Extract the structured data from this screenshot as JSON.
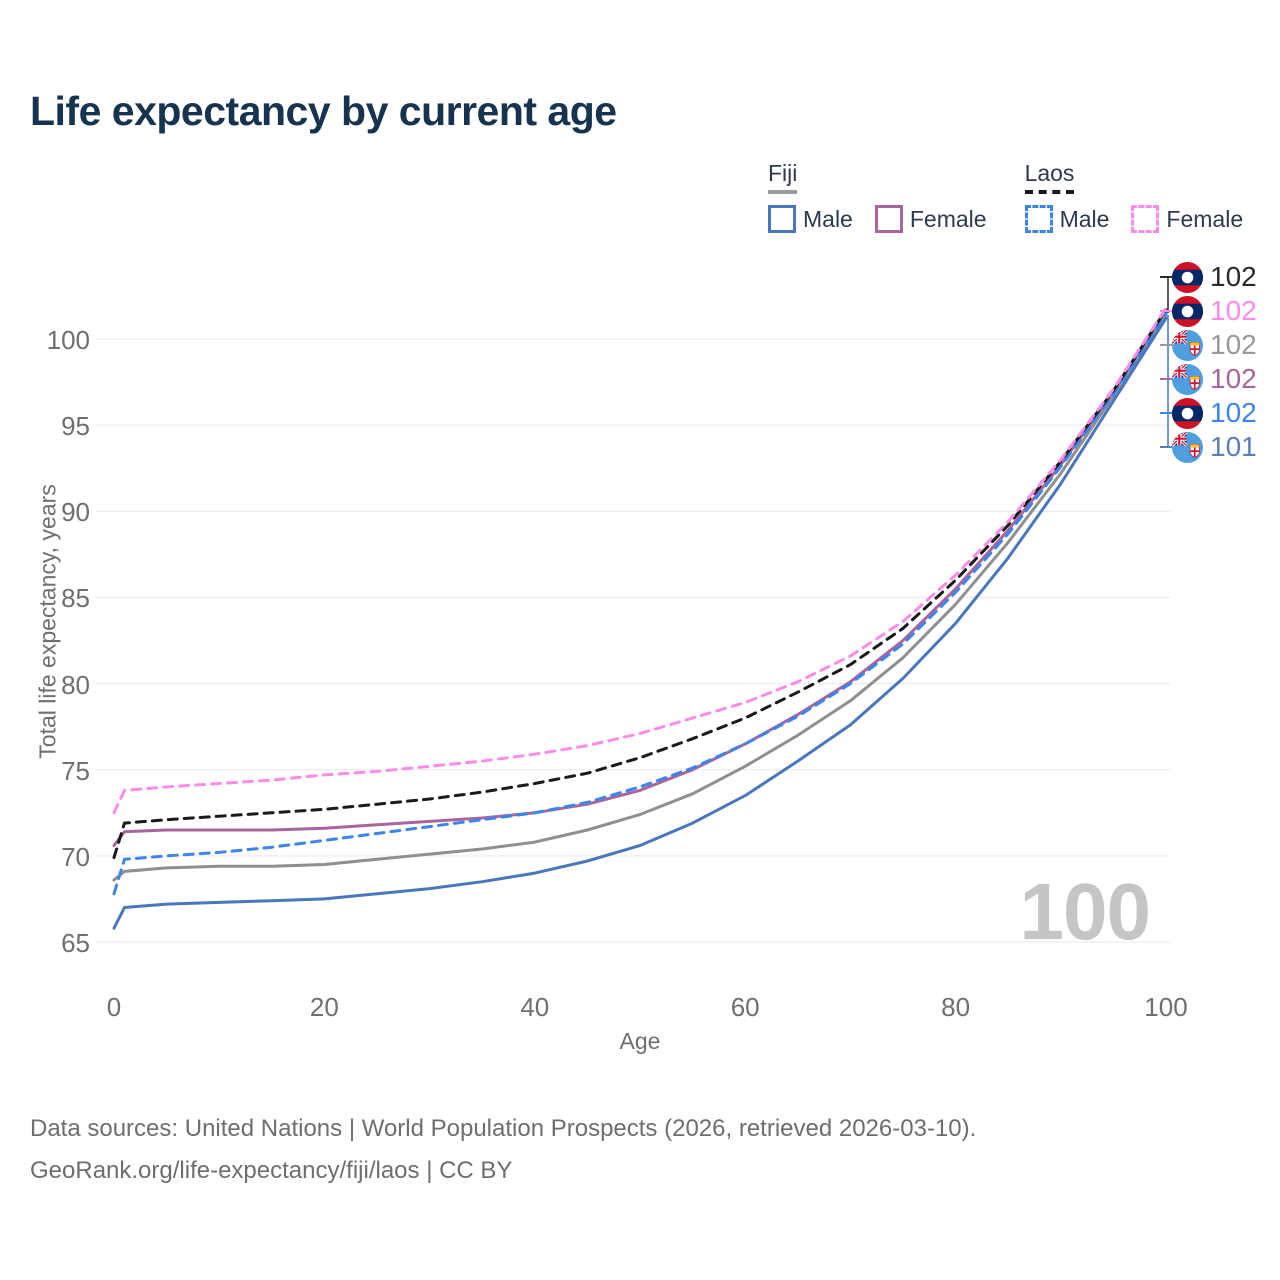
{
  "title": "Life expectancy by current age",
  "legend": {
    "groups": [
      {
        "label": "Fiji",
        "line_style": "solid",
        "underline_color": "#9a9a9a",
        "items": [
          {
            "label": "Male",
            "color": "#4a77bb"
          },
          {
            "label": "Female",
            "color": "#a9659d"
          }
        ]
      },
      {
        "label": "Laos",
        "line_style": "dashed",
        "underline_color": "#1a1a1a",
        "items": [
          {
            "label": "Male",
            "color": "#3d85ea"
          },
          {
            "label": "Female",
            "color": "#fb8ce8"
          }
        ]
      }
    ]
  },
  "chart": {
    "y_axis_label": "Total life expectancy, years",
    "x_axis_label": "Age",
    "watermark": "100",
    "y_ticks": [
      65,
      70,
      75,
      80,
      85,
      90,
      95,
      100
    ],
    "x_ticks": [
      0,
      20,
      40,
      60,
      80,
      100
    ]
  },
  "chart_data": {
    "type": "line",
    "title": "Life expectancy by current age",
    "xlabel": "Age",
    "ylabel": "Total life expectancy, years",
    "xlim": [
      0,
      100
    ],
    "ylim": [
      63,
      103
    ],
    "grid": "horizontal",
    "legend_position": "top-right",
    "x": [
      0,
      1,
      5,
      10,
      15,
      20,
      25,
      30,
      35,
      40,
      45,
      50,
      55,
      60,
      65,
      70,
      75,
      80,
      85,
      90,
      95,
      100
    ],
    "series": [
      {
        "name": "Fiji Female",
        "country": "Fiji",
        "sex": "female",
        "color": "#a9659d",
        "dash": "solid",
        "values": [
          70.6,
          71.4,
          71.5,
          71.5,
          71.5,
          71.6,
          71.8,
          72.0,
          72.2,
          72.5,
          73.0,
          73.8,
          75.0,
          76.5,
          78.2,
          80.1,
          82.5,
          85.5,
          88.9,
          92.7,
          96.9,
          101.6
        ]
      },
      {
        "name": "Fiji",
        "country": "Fiji",
        "sex": "both",
        "color": "#8f8f8f",
        "dash": "solid",
        "values": [
          68.6,
          69.1,
          69.3,
          69.4,
          69.4,
          69.5,
          69.8,
          70.1,
          70.4,
          70.8,
          71.5,
          72.4,
          73.6,
          75.2,
          77.0,
          79.0,
          81.5,
          84.6,
          88.2,
          92.2,
          96.7,
          101.4
        ]
      },
      {
        "name": "Fiji Male",
        "country": "Fiji",
        "sex": "male",
        "color": "#4a77bb",
        "dash": "solid",
        "values": [
          65.8,
          67.0,
          67.2,
          67.3,
          67.4,
          67.5,
          67.8,
          68.1,
          68.5,
          69.0,
          69.7,
          70.6,
          71.9,
          73.5,
          75.5,
          77.6,
          80.3,
          83.5,
          87.3,
          91.6,
          96.4,
          101.2
        ]
      },
      {
        "name": "Laos Male",
        "country": "Laos",
        "sex": "male",
        "color": "#3d85ea",
        "dash": "dashed",
        "values": [
          67.8,
          69.8,
          70.0,
          70.2,
          70.5,
          70.9,
          71.3,
          71.7,
          72.1,
          72.5,
          73.1,
          74.0,
          75.1,
          76.5,
          78.1,
          80.0,
          82.3,
          85.3,
          88.7,
          92.6,
          96.8,
          101.5
        ]
      },
      {
        "name": "Laos",
        "country": "Laos",
        "sex": "both",
        "color": "#1a1a1a",
        "dash": "dashed",
        "values": [
          69.9,
          71.9,
          72.1,
          72.3,
          72.5,
          72.7,
          73.0,
          73.3,
          73.7,
          74.2,
          74.8,
          75.7,
          76.8,
          78.0,
          79.5,
          81.1,
          83.2,
          86.0,
          89.2,
          92.9,
          97.0,
          101.7
        ]
      },
      {
        "name": "Laos Female",
        "country": "Laos",
        "sex": "female",
        "color": "#fb8ce8",
        "dash": "dashed",
        "values": [
          72.5,
          73.8,
          74.0,
          74.2,
          74.4,
          74.7,
          74.9,
          75.2,
          75.5,
          75.9,
          76.4,
          77.1,
          78.0,
          78.9,
          80.1,
          81.6,
          83.6,
          86.3,
          89.4,
          93.0,
          97.1,
          101.8
        ]
      }
    ]
  },
  "end_labels": [
    {
      "flag": "laos",
      "series": "Laos",
      "value": "102",
      "color": "#2b2b2b"
    },
    {
      "flag": "laos",
      "series": "Laos Female",
      "value": "102",
      "color": "#fb8ce8"
    },
    {
      "flag": "fiji",
      "series": "Fiji",
      "value": "102",
      "color": "#999999"
    },
    {
      "flag": "fiji",
      "series": "Fiji Female",
      "value": "102",
      "color": "#a9659d"
    },
    {
      "flag": "laos",
      "series": "Laos Male",
      "value": "102",
      "color": "#3d85ea"
    },
    {
      "flag": "fiji",
      "series": "Fiji Male",
      "value": "101",
      "color": "#5b7fb5"
    }
  ],
  "footer": {
    "line1": "Data sources: United Nations | World Population Prospects (2026, retrieved 2026-03-10).",
    "line2": "GeoRank.org/life-expectancy/fiji/laos | CC BY"
  }
}
